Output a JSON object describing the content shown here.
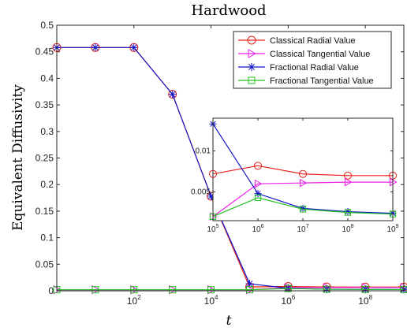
{
  "chart_data": {
    "type": "line",
    "title": "Hardwood",
    "xlabel": "t",
    "ylabel": "Equivalent Diffusivity",
    "x_scale": "log",
    "xlim": [
      1,
      1000000000
    ],
    "ylim": [
      0,
      0.5
    ],
    "x_ticks": [
      {
        "value": 100,
        "base": "10",
        "exp": "2"
      },
      {
        "value": 10000,
        "base": "10",
        "exp": "4"
      },
      {
        "value": 1000000,
        "base": "10",
        "exp": "6"
      },
      {
        "value": 100000000,
        "base": "10",
        "exp": "8"
      }
    ],
    "y_ticks": [
      {
        "value": 0,
        "label": "0"
      },
      {
        "value": 0.05,
        "label": "0.05"
      },
      {
        "value": 0.1,
        "label": "0.1"
      },
      {
        "value": 0.15,
        "label": "0.15"
      },
      {
        "value": 0.2,
        "label": "0.2"
      },
      {
        "value": 0.25,
        "label": "0.25"
      },
      {
        "value": 0.3,
        "label": "0.3"
      },
      {
        "value": 0.35,
        "label": "0.35"
      },
      {
        "value": 0.4,
        "label": "0.4"
      },
      {
        "value": 0.45,
        "label": "0.45"
      },
      {
        "value": 0.5,
        "label": "0.5"
      }
    ],
    "x": [
      1,
      10,
      100,
      1000,
      10000,
      100000,
      1000000,
      10000000,
      100000000,
      1000000000
    ],
    "series": [
      {
        "name": "Classical Radial Value",
        "color": "#e8211a",
        "marker": "circle",
        "values": [
          0.458,
          0.458,
          0.458,
          0.37,
          0.178,
          0.0072,
          0.0082,
          0.0072,
          0.007,
          0.007
        ]
      },
      {
        "name": "Classical Tangential Value",
        "color": "#ee1fe6",
        "marker": "triangle-right",
        "values": [
          0.002,
          0.002,
          0.002,
          0.002,
          0.002,
          0.002,
          0.006,
          0.0061,
          0.0062,
          0.0062
        ]
      },
      {
        "name": "Fractional Radial Value",
        "color": "#1414c8",
        "marker": "asterisk",
        "values": [
          0.458,
          0.458,
          0.458,
          0.37,
          0.178,
          0.0133,
          0.0048,
          0.003,
          0.0026,
          0.0024
        ]
      },
      {
        "name": "Fractional Tangential Value",
        "color": "#22c022",
        "marker": "square",
        "values": [
          0.002,
          0.002,
          0.002,
          0.002,
          0.002,
          0.002,
          0.0043,
          0.0029,
          0.0025,
          0.0023
        ]
      }
    ],
    "inset": {
      "xlim": [
        100000,
        1000000000
      ],
      "ylim": [
        0.0015,
        0.014
      ],
      "x_ticks": [
        {
          "value": 100000,
          "base": "10",
          "exp": "5"
        },
        {
          "value": 1000000,
          "base": "10",
          "exp": "6"
        },
        {
          "value": 10000000,
          "base": "10",
          "exp": "7"
        },
        {
          "value": 100000000,
          "base": "10",
          "exp": "8"
        },
        {
          "value": 1000000000,
          "base": "10",
          "exp": "9"
        }
      ],
      "y_ticks": [
        {
          "value": 0.005,
          "label": "0.005"
        },
        {
          "value": 0.01,
          "label": "0.01"
        }
      ]
    },
    "legend_position": "top-right"
  }
}
